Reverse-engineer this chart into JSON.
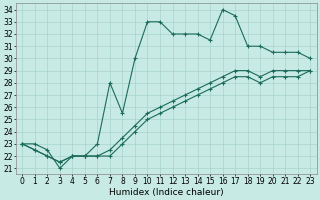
{
  "xlabel": "Humidex (Indice chaleur)",
  "xlim": [
    -0.5,
    23.5
  ],
  "ylim": [
    20.5,
    34.5
  ],
  "background_color": "#c8eae4",
  "grid_color": "#a8d4cc",
  "line_color": "#1a6b5a",
  "line1_x": [
    0,
    1,
    2,
    3,
    4,
    5,
    6,
    7,
    8,
    9,
    10,
    11,
    12,
    13,
    14,
    15,
    16,
    17,
    18,
    19,
    20,
    21,
    22,
    23
  ],
  "line1_y": [
    23,
    23,
    22.5,
    21,
    22,
    22,
    23,
    28,
    25.5,
    30,
    33,
    33,
    32,
    32,
    32,
    31.5,
    34,
    33.5,
    31,
    31,
    30.5,
    30.5,
    30.5,
    30
  ],
  "line2_x": [
    0,
    1,
    2,
    3,
    4,
    5,
    6,
    7,
    8,
    9,
    10,
    11,
    12,
    13,
    14,
    15,
    16,
    17,
    18,
    19,
    20,
    21,
    22,
    23
  ],
  "line2_y": [
    23,
    22.5,
    22,
    21.5,
    22,
    22,
    22,
    22.5,
    23.5,
    24.5,
    25.5,
    26,
    26.5,
    27,
    27.5,
    28,
    28.5,
    29,
    29,
    28.5,
    29,
    29,
    29,
    29
  ],
  "line3_x": [
    0,
    1,
    2,
    3,
    4,
    5,
    6,
    7,
    8,
    9,
    10,
    11,
    12,
    13,
    14,
    15,
    16,
    17,
    18,
    19,
    20,
    21,
    22,
    23
  ],
  "line3_y": [
    23,
    22.5,
    22,
    21.5,
    22,
    22,
    22,
    22,
    23,
    24,
    25,
    25.5,
    26,
    26.5,
    27,
    27.5,
    28,
    28.5,
    28.5,
    28,
    28.5,
    28.5,
    28.5,
    29
  ],
  "xticks": [
    0,
    1,
    2,
    3,
    4,
    5,
    6,
    7,
    8,
    9,
    10,
    11,
    12,
    13,
    14,
    15,
    16,
    17,
    18,
    19,
    20,
    21,
    22,
    23
  ],
  "yticks": [
    21,
    22,
    23,
    24,
    25,
    26,
    27,
    28,
    29,
    30,
    31,
    32,
    33,
    34
  ],
  "tick_fontsize": 5.5,
  "label_fontsize": 6.5
}
